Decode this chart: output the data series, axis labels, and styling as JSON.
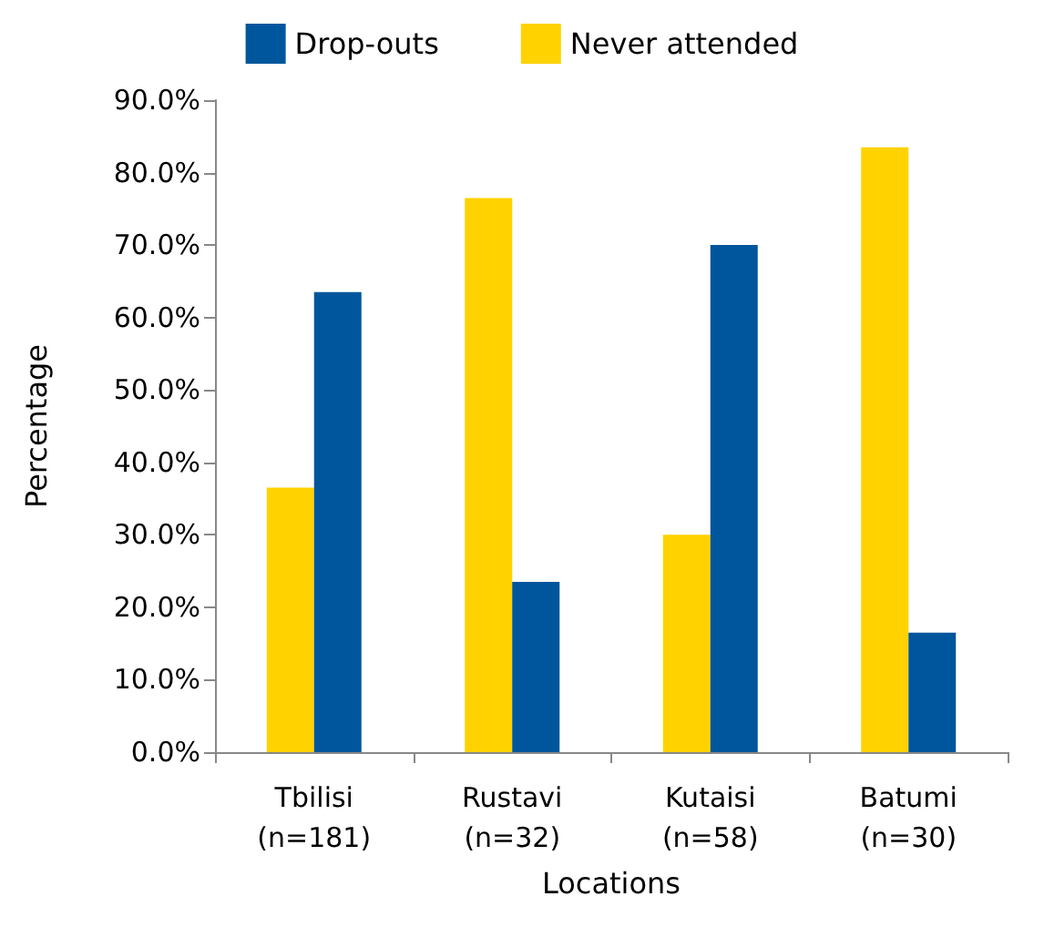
{
  "chart_data": {
    "type": "bar",
    "xlabel": "Locations",
    "ylabel": "Percentage",
    "categories": [
      "Tbilisi\n(n=181)",
      "Rustavi\n(n=32)",
      "Kutaisi\n(n=58)",
      "Batumi\n(n=30)"
    ],
    "series": [
      {
        "name": "Never attended",
        "color": "#ffd200",
        "values": [
          36.5,
          76.5,
          30,
          83.5
        ]
      },
      {
        "name": "Drop-outs",
        "color": "#00569c",
        "values": [
          63.5,
          23.5,
          70,
          16.5
        ]
      }
    ],
    "ylim": [
      0,
      90
    ],
    "yticks": [
      {
        "value": 0,
        "label": "0.0%"
      },
      {
        "value": 10,
        "label": "10.0%"
      },
      {
        "value": 20,
        "label": "20.0%"
      },
      {
        "value": 30,
        "label": "30.0%"
      },
      {
        "value": 40,
        "label": "40.0%"
      },
      {
        "value": 50,
        "label": "50.0%"
      },
      {
        "value": 60,
        "label": "60.0%"
      },
      {
        "value": 70,
        "label": "70.0%"
      },
      {
        "value": 80,
        "label": "80.0%"
      },
      {
        "value": 90,
        "label": "90.0%"
      }
    ],
    "grid": false,
    "legend": "top"
  }
}
